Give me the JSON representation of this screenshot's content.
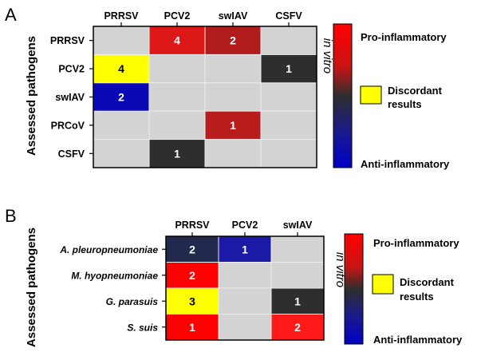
{
  "colors": {
    "empty": "#d3d3d3",
    "pro": "#ff0000",
    "mid": "#2e2e2e",
    "anti": "#0000c8",
    "discordant": "#ffff00"
  },
  "chart_data": [
    {
      "type": "heatmap",
      "panel_label": "A",
      "ylabel": "Assessed pathogens",
      "side_label": "in vitro",
      "columns": [
        "PRRSV",
        "PCV2",
        "swIAV",
        "CSFV"
      ],
      "rows": [
        "PRRSV",
        "PCV2",
        "swIAV",
        "PRCoV",
        "CSFV"
      ],
      "cells": [
        {
          "row": 0,
          "col": 1,
          "value": "4",
          "color": "#dd1818",
          "text_color": "#ffffff"
        },
        {
          "row": 0,
          "col": 2,
          "value": "2",
          "color": "#b01c1c",
          "text_color": "#ffffff"
        },
        {
          "row": 1,
          "col": 0,
          "value": "4",
          "color": "#ffff00",
          "text_color": "#000000"
        },
        {
          "row": 1,
          "col": 3,
          "value": "1",
          "color": "#2e2e2e",
          "text_color": "#ffffff"
        },
        {
          "row": 2,
          "col": 0,
          "value": "2",
          "color": "#0a0ab4",
          "text_color": "#ffffff"
        },
        {
          "row": 3,
          "col": 2,
          "value": "1",
          "color": "#b81c1c",
          "text_color": "#ffffff"
        },
        {
          "row": 4,
          "col": 1,
          "value": "1",
          "color": "#2e2e2e",
          "text_color": "#ffffff"
        }
      ],
      "legend": {
        "top": "Pro-inflammatory",
        "bottom": "Anti-inflammatory",
        "discordant_line1": "Discordant",
        "discordant_line2": "results"
      }
    },
    {
      "type": "heatmap",
      "panel_label": "B",
      "ylabel": "Assessed pathogens",
      "side_label": "in vitro",
      "columns": [
        "PRRSV",
        "PCV2",
        "swIAV"
      ],
      "rows": [
        "A. pleuropneumoniae",
        "M. hyopneumoniae",
        "G. parasuis",
        "S. suis"
      ],
      "cells": [
        {
          "row": 0,
          "col": 0,
          "value": "2",
          "color": "#22284e",
          "text_color": "#ffffff"
        },
        {
          "row": 0,
          "col": 1,
          "value": "1",
          "color": "#1a1aa6",
          "text_color": "#ffffff"
        },
        {
          "row": 1,
          "col": 0,
          "value": "2",
          "color": "#ff0000",
          "text_color": "#ffffff"
        },
        {
          "row": 2,
          "col": 0,
          "value": "3",
          "color": "#ffff00",
          "text_color": "#000000"
        },
        {
          "row": 2,
          "col": 2,
          "value": "1",
          "color": "#2e2e2e",
          "text_color": "#ffffff"
        },
        {
          "row": 3,
          "col": 0,
          "value": "1",
          "color": "#ff0000",
          "text_color": "#ffffff"
        },
        {
          "row": 3,
          "col": 2,
          "value": "2",
          "color": "#ff1a1a",
          "text_color": "#ffffff"
        }
      ],
      "legend": {
        "top": "Pro-inflammatory",
        "bottom": "Anti-inflammatory",
        "discordant_line1": "Discordant",
        "discordant_line2": "results"
      }
    }
  ]
}
